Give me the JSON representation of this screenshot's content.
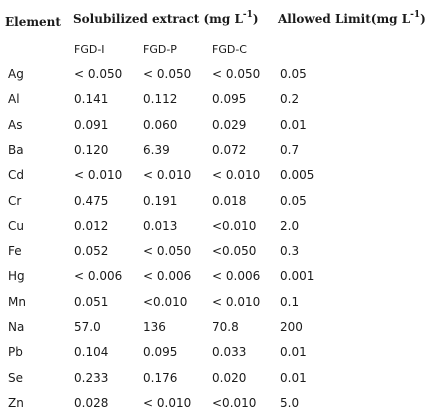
{
  "header": {
    "element": "Element",
    "solubilized_text": "Solubilized extract (mg L",
    "solubilized_exp": "-1",
    "solubilized_close": ")",
    "limit_text": "Allowed Limit(mg L",
    "limit_exp": "-1",
    "limit_close": ")"
  },
  "subheaders": [
    "FGD-I",
    "FGD-P",
    "FGD-C"
  ],
  "rows": [
    {
      "element": "Ag",
      "fgd_i": "< 0.050",
      "fgd_p": "< 0.050",
      "fgd_c": "< 0.050",
      "limit": "0.05"
    },
    {
      "element": "Al",
      "fgd_i": "0.141",
      "fgd_p": "0.112",
      "fgd_c": "0.095",
      "limit": "0.2"
    },
    {
      "element": "As",
      "fgd_i": "0.091",
      "fgd_p": "0.060",
      "fgd_c": "0.029",
      "limit": "0.01"
    },
    {
      "element": "Ba",
      "fgd_i": "0.120",
      "fgd_p": "6.39",
      "fgd_c": "0.072",
      "limit": "0.7"
    },
    {
      "element": "Cd",
      "fgd_i": "< 0.010",
      "fgd_p": "< 0.010",
      "fgd_c": "< 0.010",
      "limit": "0.005"
    },
    {
      "element": "Cr",
      "fgd_i": "0.475",
      "fgd_p": "0.191",
      "fgd_c": "0.018",
      "limit": "0.05"
    },
    {
      "element": "Cu",
      "fgd_i": "0.012",
      "fgd_p": "0.013",
      "fgd_c": "<0.010",
      "limit": "2.0"
    },
    {
      "element": "Fe",
      "fgd_i": "0.052",
      "fgd_p": "< 0.050",
      "fgd_c": "<0.050",
      "limit": "0.3"
    },
    {
      "element": "Hg",
      "fgd_i": "< 0.006",
      "fgd_p": "< 0.006",
      "fgd_c": "< 0.006",
      "limit": "0.001"
    },
    {
      "element": "Mn",
      "fgd_i": "0.051",
      "fgd_p": "<0.010",
      "fgd_c": "< 0.010",
      "limit": "0.1"
    },
    {
      "element": "Na",
      "fgd_i": "57.0",
      "fgd_p": "136",
      "fgd_c": "70.8",
      "limit": "200"
    },
    {
      "element": "Pb",
      "fgd_i": "0.104",
      "fgd_p": "0.095",
      "fgd_c": "0.033",
      "limit": "0.01"
    },
    {
      "element": "Se",
      "fgd_i": "0.233",
      "fgd_p": "0.176",
      "fgd_c": "0.020",
      "limit": "0.01"
    },
    {
      "element": "Zn",
      "fgd_i": "0.028",
      "fgd_p": "< 0.010",
      "fgd_c": "<0.010",
      "limit": "5.0"
    }
  ]
}
